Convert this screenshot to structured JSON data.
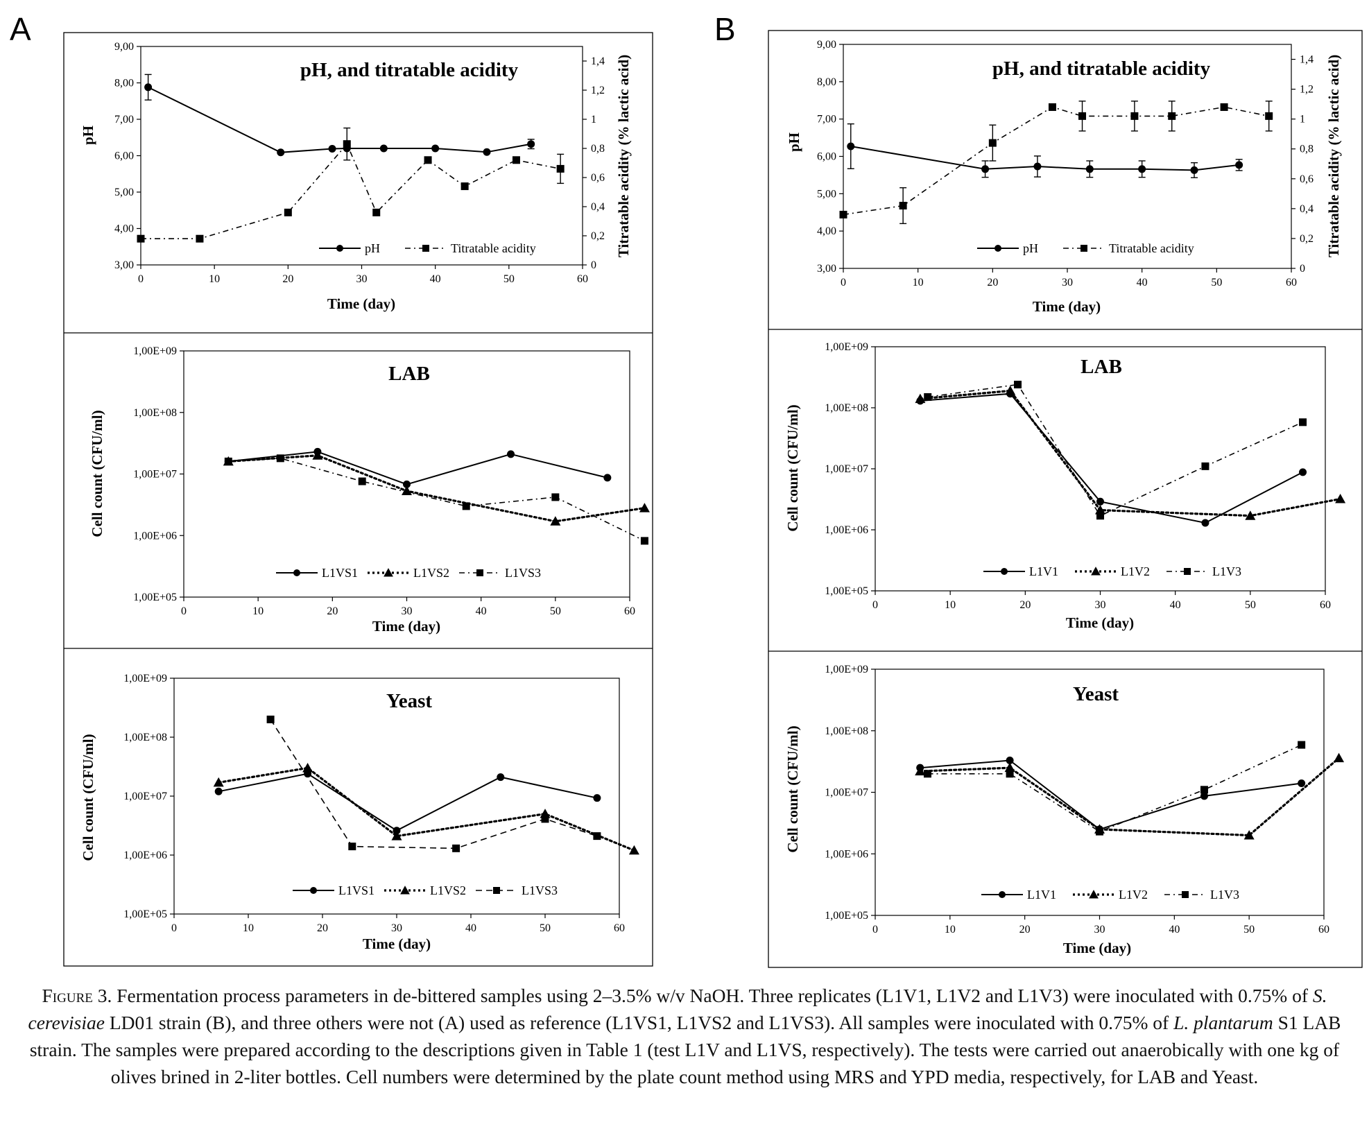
{
  "panel_letters": [
    "A",
    "B"
  ],
  "caption": {
    "label": "Figure 3.",
    "p1": "Fermentation process parameters in de-bittered samples using 2–3.5% w/v NaOH. Three replicates (L1V1, L1V2 and L1V3) were inoculated with 0.75% of",
    "sp1": "S. cerevisiae",
    "p2": "LD01 strain (B), and three others were not (A) used as reference (L1VS1, L1VS2 and L1VS3). All samples were inoculated with 0.75% of",
    "sp2": "L. plantarum",
    "p3": "S1 LAB strain. The samples were prepared according to the descriptions given in Table 1 (test L1V and L1VS, respectively). The tests were carried out anaerobically with one kg of olives brined in 2-liter bottles. Cell numbers were determined by the plate count method using MRS and YPD media, respectively, for LAB and Yeast."
  },
  "chart_data": [
    {
      "id": "A-ph",
      "type": "line",
      "panel": "A",
      "title": "pH, and titratable acidity",
      "xlabel": "Time (day)",
      "ylabel": "pH",
      "y2label": "Titratable acidity (% lactic acid)",
      "xlim": [
        0,
        60
      ],
      "xticks": [
        0,
        10,
        20,
        30,
        40,
        50,
        60
      ],
      "xtick_labels": [
        "0",
        "10",
        "20",
        "30",
        "40",
        "50",
        "60"
      ],
      "ylim": [
        3,
        9
      ],
      "yticks": [
        3,
        4,
        5,
        6,
        7,
        8,
        9
      ],
      "ytick_labels": [
        "3,00",
        "4,00",
        "5,00",
        "6,00",
        "7,00",
        "8,00",
        "9,00"
      ],
      "y2lim": [
        0,
        1.5
      ],
      "y2ticks": [
        0,
        0.2,
        0.4,
        0.6,
        0.8,
        1,
        1.2,
        1.4
      ],
      "y2tick_labels": [
        "0",
        "0,2",
        "0,4",
        "0,6",
        "0,8",
        "1",
        "1,2",
        "1,4"
      ],
      "legend": "bottom-right",
      "series": [
        {
          "name": "pH",
          "axis": "left",
          "marker": "circle",
          "dash": "solid",
          "x": [
            1,
            19,
            26,
            28,
            33,
            40,
            47,
            53
          ],
          "y": [
            7.88,
            6.09,
            6.19,
            6.2,
            6.2,
            6.2,
            6.1,
            6.32
          ],
          "err": [
            0.35,
            0,
            0,
            0,
            0,
            0,
            0,
            0.13
          ]
        },
        {
          "name": "Titratable acidity",
          "axis": "right",
          "marker": "square",
          "dash": "dashdot",
          "x": [
            0,
            8,
            20,
            28,
            32,
            39,
            44,
            51,
            57
          ],
          "y": [
            0.18,
            0.18,
            0.36,
            0.83,
            0.36,
            0.72,
            0.54,
            0.72,
            0.66
          ],
          "err": [
            0,
            0,
            0,
            0.11,
            0,
            0,
            0,
            0,
            0.1
          ]
        }
      ]
    },
    {
      "id": "A-lab",
      "type": "line",
      "panel": "A",
      "title": "LAB",
      "xlabel": "Time (day)",
      "ylabel": "Cell count (CFU/ml)",
      "log_y": true,
      "xlim": [
        0,
        60
      ],
      "xticks": [
        0,
        10,
        20,
        30,
        40,
        50,
        60
      ],
      "xtick_labels": [
        "0",
        "10",
        "20",
        "30",
        "40",
        "50",
        "60"
      ],
      "ylim": [
        100000,
        1000000000
      ],
      "yticks": [
        100000,
        1000000,
        10000000,
        100000000,
        1000000000
      ],
      "ytick_labels": [
        "1,00E+05",
        "1,00E+06",
        "1,00E+07",
        "1,00E+08",
        "1,00E+09"
      ],
      "legend": "bottom",
      "series": [
        {
          "name": "L1VS1",
          "marker": "circle",
          "dash": "solid",
          "x": [
            6,
            18,
            30,
            44,
            57
          ],
          "y": [
            16000000,
            23000000,
            6800000,
            21000000,
            8700000
          ]
        },
        {
          "name": "L1VS2",
          "marker": "triangle",
          "dash": "dotted",
          "x": [
            6,
            18,
            30,
            50,
            62
          ],
          "y": [
            16000000,
            20000000,
            5300000,
            1700000,
            2800000
          ]
        },
        {
          "name": "L1VS3",
          "marker": "square",
          "dash": "dashdot",
          "x": [
            6,
            13,
            24,
            38,
            50,
            62
          ],
          "y": [
            16000000,
            18000000,
            7600000,
            3000000,
            4200000,
            820000
          ]
        }
      ]
    },
    {
      "id": "A-yeast",
      "type": "line",
      "panel": "A",
      "title": "Yeast",
      "xlabel": "Time (day)",
      "ylabel": "Cell count (CFU/ml)",
      "log_y": true,
      "xlim": [
        0,
        60
      ],
      "xticks": [
        0,
        10,
        20,
        30,
        40,
        50,
        60
      ],
      "xtick_labels": [
        "0",
        "10",
        "20",
        "30",
        "40",
        "50",
        "60"
      ],
      "ylim": [
        100000,
        1000000000
      ],
      "yticks": [
        100000,
        1000000,
        10000000,
        100000000,
        1000000000
      ],
      "ytick_labels": [
        "1,00E+05",
        "1,00E+06",
        "1,00E+07",
        "1,00E+08",
        "1,00E+09"
      ],
      "legend": "bottom",
      "series": [
        {
          "name": "L1VS1",
          "marker": "circle",
          "dash": "solid",
          "x": [
            6,
            18,
            30,
            44,
            57
          ],
          "y": [
            12000000,
            24000000,
            2600000,
            21000000,
            9300000
          ]
        },
        {
          "name": "L1VS2",
          "marker": "triangle",
          "dash": "dotted",
          "x": [
            6,
            18,
            30,
            50,
            62
          ],
          "y": [
            17000000,
            30000000,
            2100000,
            5000000,
            1200000
          ]
        },
        {
          "name": "L1VS3",
          "marker": "square",
          "dash": "dashed",
          "x": [
            13,
            24,
            38,
            50,
            57
          ],
          "y": [
            200000000,
            1400000,
            1300000,
            4100000,
            2100000
          ]
        }
      ]
    },
    {
      "id": "B-ph",
      "type": "line",
      "panel": "B",
      "title": "pH, and titratable acidity",
      "xlabel": "Time (day)",
      "ylabel": "pH",
      "y2label": "Titratable acidity (% lactic acid)",
      "xlim": [
        0,
        60
      ],
      "xticks": [
        0,
        10,
        20,
        30,
        40,
        50,
        60
      ],
      "xtick_labels": [
        "0",
        "10",
        "20",
        "30",
        "40",
        "50",
        "60"
      ],
      "ylim": [
        3,
        9
      ],
      "yticks": [
        3,
        4,
        5,
        6,
        7,
        8,
        9
      ],
      "ytick_labels": [
        "3,00",
        "4,00",
        "5,00",
        "6,00",
        "7,00",
        "8,00",
        "9,00"
      ],
      "y2lim": [
        0,
        1.5
      ],
      "y2ticks": [
        0,
        0.2,
        0.4,
        0.6,
        0.8,
        1,
        1.2,
        1.4
      ],
      "y2tick_labels": [
        "0",
        "0,2",
        "0,4",
        "0,6",
        "0,8",
        "1",
        "1,2",
        "1,4"
      ],
      "legend": "bottom-right",
      "series": [
        {
          "name": "pH",
          "axis": "left",
          "marker": "circle",
          "dash": "solid",
          "x": [
            1,
            19,
            26,
            33,
            40,
            47,
            53
          ],
          "y": [
            6.27,
            5.66,
            5.73,
            5.66,
            5.66,
            5.63,
            5.77
          ],
          "err": [
            0.6,
            0.22,
            0.28,
            0.22,
            0.22,
            0.2,
            0.15
          ]
        },
        {
          "name": "Titratable acidity",
          "axis": "right",
          "marker": "square",
          "dash": "dashdot",
          "x": [
            0,
            8,
            20,
            28,
            32,
            39,
            44,
            51,
            57
          ],
          "y": [
            0.36,
            0.42,
            0.84,
            1.08,
            1.02,
            1.02,
            1.02,
            1.08,
            1.02
          ],
          "err": [
            0,
            0.12,
            0.12,
            0,
            0.1,
            0.1,
            0.1,
            0,
            0.1
          ]
        }
      ]
    },
    {
      "id": "B-lab",
      "type": "line",
      "panel": "B",
      "title": "LAB",
      "xlabel": "Time (day)",
      "ylabel": "Cell count (CFU/ml)",
      "log_y": true,
      "xlim": [
        0,
        60
      ],
      "xticks": [
        0,
        10,
        20,
        30,
        40,
        50,
        60
      ],
      "xtick_labels": [
        "0",
        "10",
        "20",
        "30",
        "40",
        "50",
        "60"
      ],
      "ylim": [
        100000,
        1000000000
      ],
      "yticks": [
        100000,
        1000000,
        10000000,
        100000000,
        1000000000
      ],
      "ytick_labels": [
        "1,00E+05",
        "1,00E+06",
        "1,00E+07",
        "1,00E+08",
        "1,00E+09"
      ],
      "legend": "bottom",
      "series": [
        {
          "name": "L1V1",
          "marker": "circle",
          "dash": "solid",
          "x": [
            6,
            18,
            30,
            44,
            57
          ],
          "y": [
            130000000,
            170000000,
            2900000,
            1300000,
            8800000
          ]
        },
        {
          "name": "L1V2",
          "marker": "triangle",
          "dash": "dotted",
          "x": [
            6,
            18,
            30,
            50,
            62
          ],
          "y": [
            140000000,
            190000000,
            2100000,
            1700000,
            3200000
          ]
        },
        {
          "name": "L1V3",
          "marker": "square",
          "dash": "dashdot",
          "x": [
            7,
            19,
            30,
            44,
            57
          ],
          "y": [
            150000000,
            240000000,
            1700000,
            11000000,
            58000000
          ]
        }
      ]
    },
    {
      "id": "B-yeast",
      "type": "line",
      "panel": "B",
      "title": "Yeast",
      "xlabel": "Time (day)",
      "ylabel": "Cell count (CFU/ml)",
      "log_y": true,
      "xlim": [
        0,
        60
      ],
      "xticks": [
        0,
        10,
        20,
        30,
        40,
        50,
        60
      ],
      "xtick_labels": [
        "0",
        "10",
        "20",
        "30",
        "40",
        "50",
        "60"
      ],
      "ylim": [
        100000,
        1000000000
      ],
      "yticks": [
        100000,
        1000000,
        10000000,
        100000000,
        1000000000
      ],
      "ytick_labels": [
        "1,00E+05",
        "1,00E+06",
        "1,00E+07",
        "1,00E+08",
        "1,00E+09"
      ],
      "legend": "bottom",
      "series": [
        {
          "name": "L1V1",
          "marker": "circle",
          "dash": "solid",
          "x": [
            6,
            18,
            30,
            44,
            57
          ],
          "y": [
            25000000,
            33000000,
            2500000,
            8700000,
            14000000
          ]
        },
        {
          "name": "L1V2",
          "marker": "triangle",
          "dash": "dotted",
          "x": [
            6,
            18,
            30,
            50,
            62
          ],
          "y": [
            22000000,
            25000000,
            2500000,
            2000000,
            36000000
          ]
        },
        {
          "name": "L1V3",
          "marker": "square",
          "dash": "dashdot",
          "x": [
            7,
            18,
            30,
            44,
            57
          ],
          "y": [
            20000000,
            20000000,
            2300000,
            11000000,
            59000000
          ]
        }
      ]
    }
  ]
}
